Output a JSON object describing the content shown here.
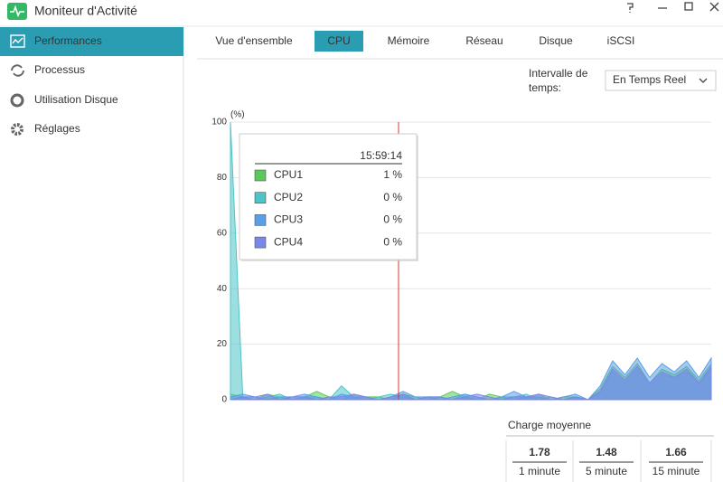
{
  "window": {
    "title": "Moniteur d'Activité"
  },
  "sidebar": {
    "items": [
      "Performances",
      "Processus",
      "Utilisation Disque",
      "Réglages"
    ],
    "selected": 0
  },
  "tabs": {
    "items": [
      "Vue d'ensemble",
      "CPU",
      "Mémoire",
      "Réseau",
      "Disque",
      "iSCSI"
    ],
    "selected": 1
  },
  "interval": {
    "label": [
      "Intervalle de",
      "temps:"
    ],
    "value": "En Temps Reel"
  },
  "chart_data": {
    "type": "area",
    "y_label": "(%)",
    "ylim": [
      0,
      100
    ],
    "yticks": [
      0,
      20,
      40,
      60,
      80,
      100
    ],
    "grid": true,
    "series": [
      {
        "name": "CPU1",
        "color": "#5cc85c",
        "values": [
          2,
          1,
          0,
          2,
          1,
          0,
          1,
          3,
          1,
          0,
          2,
          1,
          1,
          0,
          2,
          1,
          0,
          1,
          3,
          1,
          0,
          2,
          1,
          0,
          1,
          2,
          0,
          1,
          1,
          0,
          4,
          12,
          8,
          13,
          6,
          11,
          9,
          12,
          7,
          13
        ]
      },
      {
        "name": "CPU2",
        "color": "#4cc4c8",
        "values": [
          100,
          1,
          0,
          1,
          2,
          0,
          1,
          1,
          0,
          5,
          1,
          0,
          1,
          2,
          1,
          0,
          1,
          1,
          0,
          2,
          1,
          0,
          1,
          1,
          2,
          0,
          1,
          0,
          1,
          0,
          3,
          10,
          6,
          11,
          5,
          9,
          8,
          10,
          6,
          11
        ]
      },
      {
        "name": "CPU3",
        "color": "#5b9fe8",
        "values": [
          1,
          2,
          1,
          0,
          1,
          1,
          2,
          1,
          0,
          2,
          1,
          1,
          0,
          1,
          3,
          1,
          1,
          0,
          1,
          2,
          1,
          0,
          1,
          3,
          1,
          1,
          0,
          1,
          2,
          0,
          5,
          14,
          9,
          15,
          8,
          13,
          10,
          14,
          8,
          15
        ]
      },
      {
        "name": "CPU4",
        "color": "#7b86e6",
        "values": [
          0,
          1,
          1,
          2,
          0,
          1,
          1,
          0,
          1,
          1,
          2,
          1,
          0,
          1,
          2,
          0,
          1,
          1,
          0,
          1,
          2,
          1,
          0,
          1,
          1,
          2,
          1,
          0,
          1,
          0,
          3,
          11,
          7,
          12,
          6,
          10,
          8,
          11,
          6,
          12
        ]
      }
    ]
  },
  "tooltip": {
    "time": "15:59:14",
    "values": [
      "1 %",
      "0 %",
      "0 %",
      "0 %"
    ]
  },
  "load_average": {
    "title": "Charge moyenne",
    "items": [
      {
        "value": 1.78,
        "period": "1 minute"
      },
      {
        "value": 1.48,
        "period": "5 minute"
      },
      {
        "value": 1.66,
        "period": "15 minute"
      }
    ]
  }
}
